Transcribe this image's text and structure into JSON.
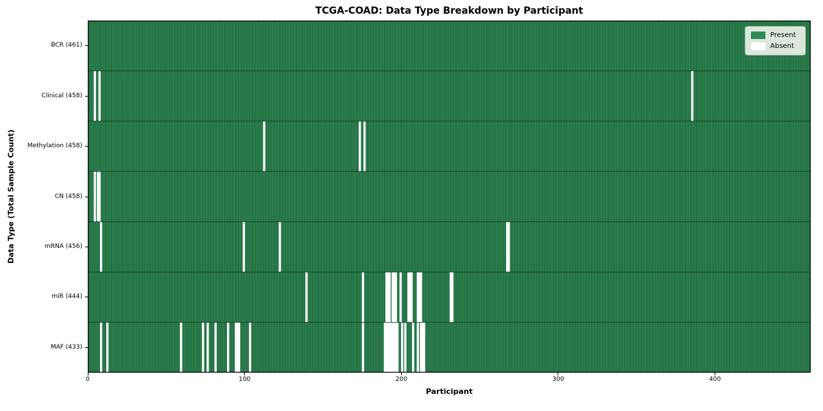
{
  "chart_data": {
    "type": "heatmap",
    "title": "TCGA-COAD: Data Type Breakdown by Participant",
    "xlabel": "Participant",
    "ylabel": "Data Type (Total Sample Count)",
    "n_participants": 461,
    "x_ticks": [
      0,
      100,
      200,
      300,
      400
    ],
    "x_range": [
      0,
      461
    ],
    "grid": false,
    "legend_position": "upper right",
    "legend": [
      {
        "label": "Present",
        "color": "#2e8b57"
      },
      {
        "label": "Absent",
        "color": "#ffffff"
      }
    ],
    "colors": {
      "present": "#2e8b57",
      "edge": "#16391f",
      "absent": "#ffffff",
      "frame": "#000000"
    },
    "rows": [
      {
        "label": "BCR",
        "total": 461,
        "absent": []
      },
      {
        "label": "Clinical",
        "total": 458,
        "absent": [
          4,
          7,
          385
        ]
      },
      {
        "label": "Methylation",
        "total": 458,
        "absent": [
          112,
          173,
          176
        ]
      },
      {
        "label": "CN",
        "total": 458,
        "absent": [
          4,
          6,
          7
        ]
      },
      {
        "label": "mRNA",
        "total": 456,
        "absent": [
          8,
          99,
          122,
          267,
          268
        ]
      },
      {
        "label": "miR",
        "total": 444,
        "absent": [
          139,
          175,
          190,
          191,
          192,
          194,
          195,
          196,
          199,
          204,
          205,
          206,
          210,
          211,
          212,
          231,
          232
        ]
      },
      {
        "label": "MAF",
        "total": 433,
        "absent": [
          8,
          12,
          59,
          73,
          76,
          81,
          89,
          94,
          95,
          96,
          103,
          175,
          189,
          190,
          191,
          192,
          193,
          194,
          195,
          196,
          197,
          200,
          202,
          207,
          210,
          212,
          213,
          214
        ]
      }
    ]
  }
}
